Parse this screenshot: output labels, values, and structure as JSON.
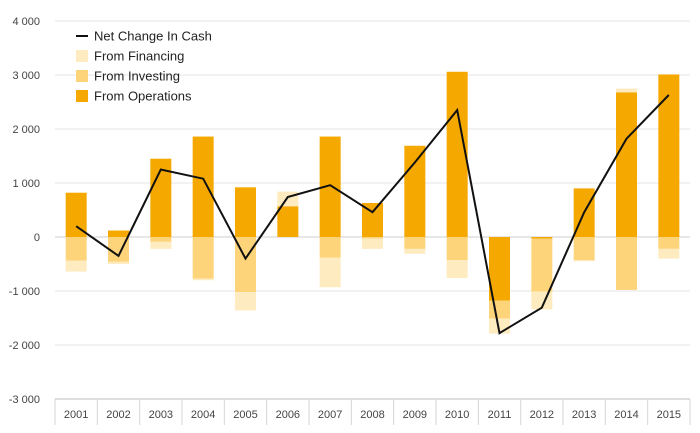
{
  "chart_data": {
    "type": "bar",
    "categories": [
      "2001",
      "2002",
      "2003",
      "2004",
      "2005",
      "2006",
      "2007",
      "2008",
      "2009",
      "2010",
      "2011",
      "2012",
      "2013",
      "2014",
      "2015"
    ],
    "series": [
      {
        "name": "From Operations",
        "kind": "stacked-bar",
        "color": "#F5A800",
        "values": [
          820,
          120,
          1450,
          1860,
          920,
          570,
          1860,
          630,
          1690,
          3060,
          -1180,
          -30,
          900,
          2680,
          3010
        ]
      },
      {
        "name": "From Investing",
        "kind": "stacked-bar",
        "color": "#FDD47A",
        "values": [
          -440,
          -460,
          -90,
          -770,
          -1020,
          0,
          -380,
          -30,
          -220,
          -430,
          -330,
          -980,
          -430,
          -980,
          -220
        ]
      },
      {
        "name": "From Financing",
        "kind": "stacked-bar",
        "color": "#FEEBC0",
        "values": [
          -200,
          -40,
          -130,
          -30,
          -340,
          270,
          -550,
          -190,
          -90,
          -330,
          -280,
          -330,
          -20,
          70,
          -180
        ]
      },
      {
        "name": "Net Change In Cash",
        "kind": "line",
        "color": "#111111",
        "values": [
          200,
          -350,
          1250,
          1080,
          -400,
          740,
          960,
          460,
          1380,
          2350,
          -1780,
          -1310,
          460,
          1820,
          2630
        ]
      }
    ],
    "yticks": [
      "-3 000",
      "-2 000",
      "-1 000",
      "0",
      "1 000",
      "2 000",
      "3 000",
      "4 000"
    ],
    "ylim": [
      -3000,
      4000
    ],
    "grid": true,
    "legend_position": "top-left",
    "legend": [
      "Net Change In Cash",
      "From Financing",
      "From Investing",
      "From Operations"
    ],
    "title": "",
    "xlabel": "",
    "ylabel": ""
  }
}
